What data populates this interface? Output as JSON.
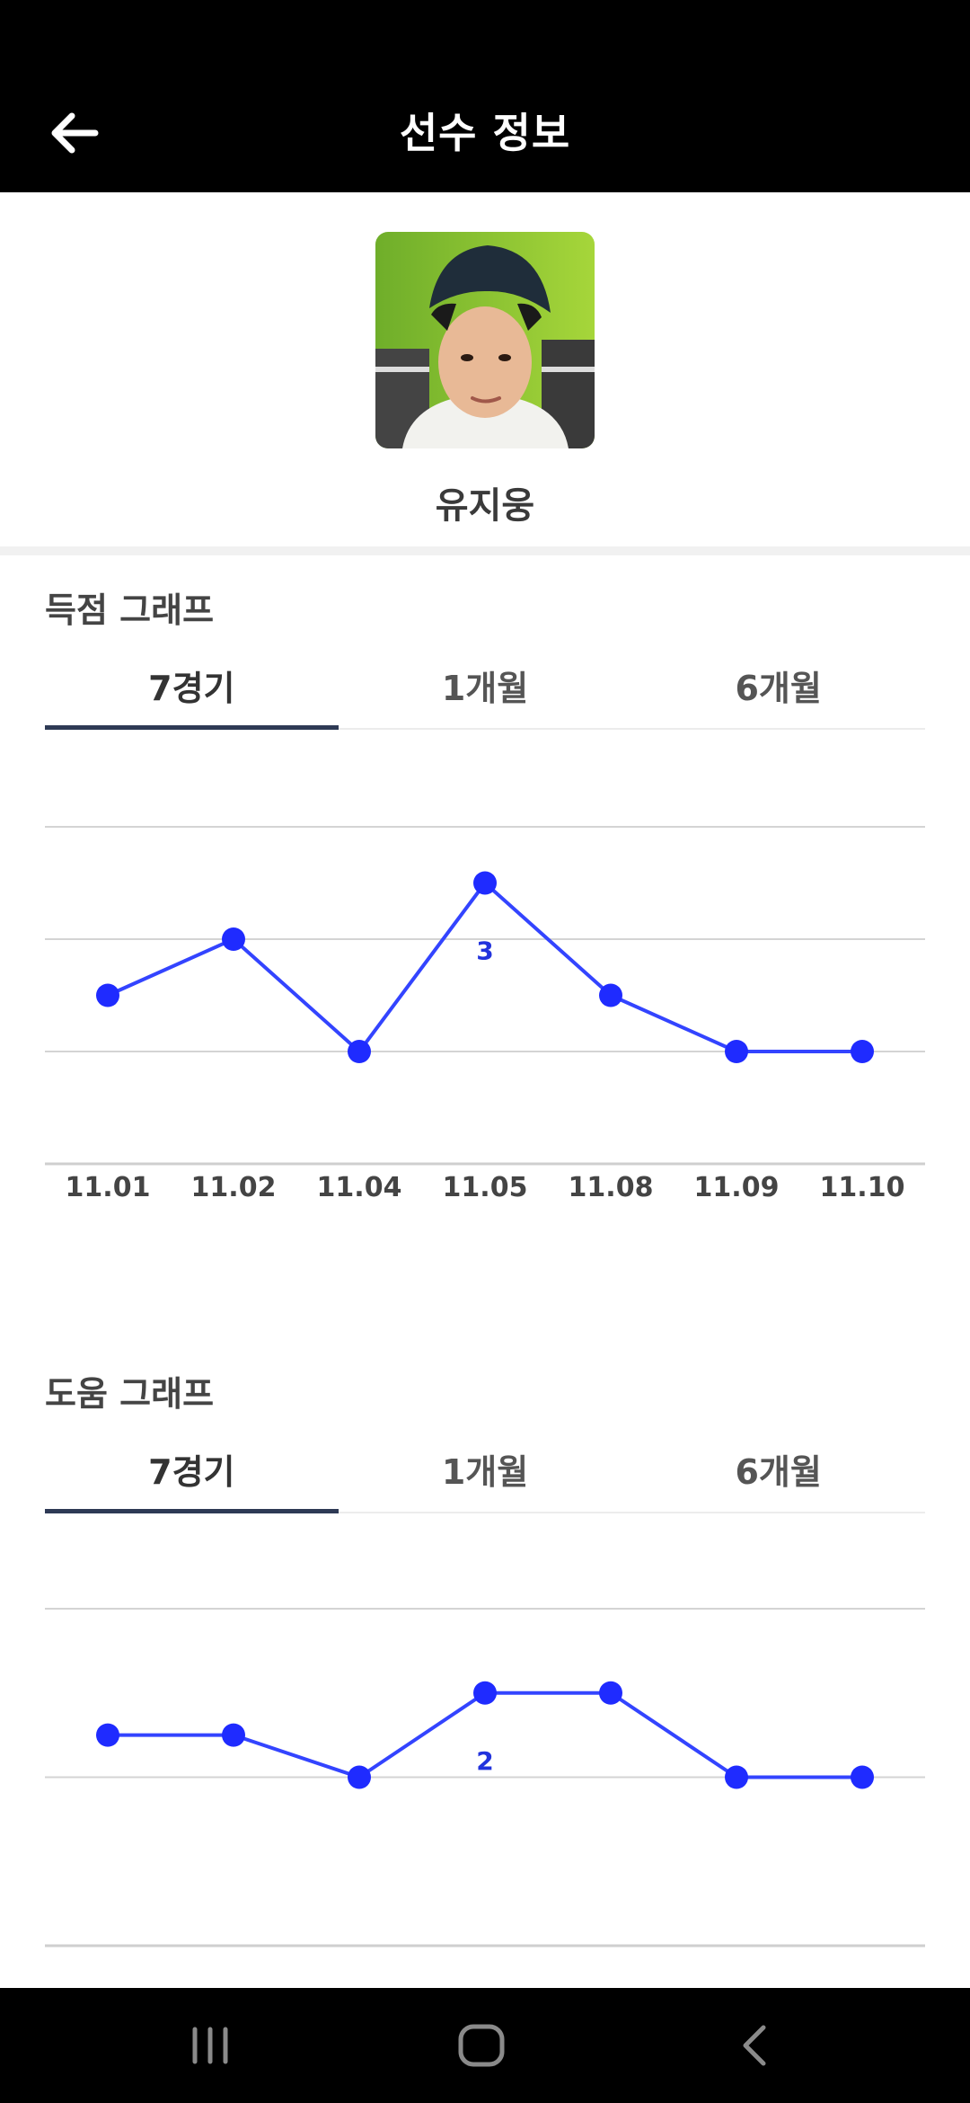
{
  "appbar": {
    "title": "선수 정보",
    "back_icon": "arrow-left-icon"
  },
  "player": {
    "name": "유지웅"
  },
  "goals": {
    "title": "득점 그래프",
    "tabs": [
      {
        "label": "7경기",
        "active": true
      },
      {
        "label": "1개월",
        "active": false
      },
      {
        "label": "6개월",
        "active": false
      }
    ]
  },
  "assists": {
    "title": "도움 그래프",
    "tabs": [
      {
        "label": "7경기",
        "active": true
      },
      {
        "label": "1개월",
        "active": false
      },
      {
        "label": "6개월",
        "active": false
      }
    ]
  },
  "chart_data": [
    {
      "type": "line",
      "categories": [
        "11.01",
        "11.02",
        "11.04",
        "11.05",
        "11.08",
        "11.09",
        "11.10"
      ],
      "values": [
        1.5,
        2,
        1,
        2.5,
        1.5,
        1,
        1
      ],
      "data_labels": [
        {
          "index": 3,
          "text": "3"
        }
      ],
      "ylim": [
        0,
        3
      ],
      "grid": true,
      "color": "#3344ff"
    },
    {
      "type": "line",
      "categories": [
        "",
        "",
        "",
        "",
        "",
        "",
        ""
      ],
      "values": [
        1.25,
        1.25,
        1,
        1.5,
        1.5,
        1,
        1
      ],
      "data_labels": [
        {
          "index": 3,
          "text": "2"
        }
      ],
      "ylim": [
        0,
        2
      ],
      "grid": true,
      "color": "#3344ff"
    }
  ],
  "navbar": {
    "recent_icon": "recent-apps-icon",
    "home_icon": "home-icon",
    "back_icon": "back-chevron-icon"
  }
}
